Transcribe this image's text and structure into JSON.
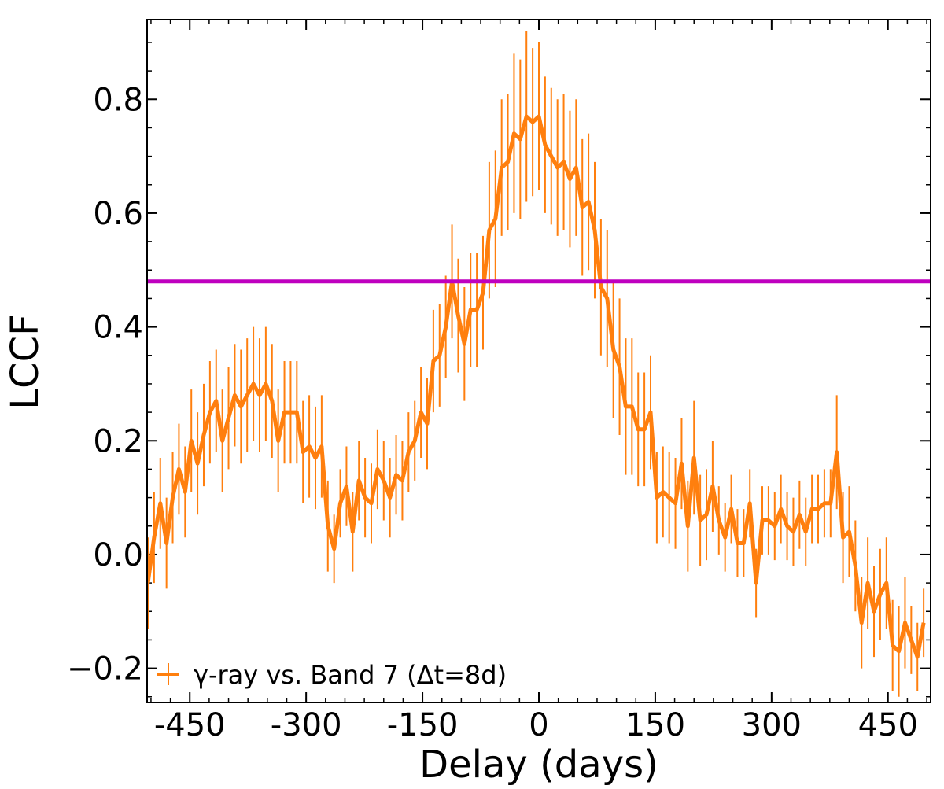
{
  "chart_data": {
    "type": "line",
    "xlabel": "Delay (days)",
    "ylabel": "LCCF",
    "xlim": [
      -505,
      505
    ],
    "ylim": [
      -0.26,
      0.94
    ],
    "x_ticks": [
      -450,
      -300,
      -150,
      0,
      150,
      300,
      450
    ],
    "x_tick_labels": [
      "-450",
      "-300",
      "-150",
      "0",
      "150",
      "300",
      "450"
    ],
    "y_ticks": [
      -0.2,
      0.0,
      0.2,
      0.4,
      0.6,
      0.8
    ],
    "y_tick_labels": [
      "−0.2",
      "0.0",
      "0.2",
      "0.4",
      "0.6",
      "0.8"
    ],
    "threshold": {
      "y": 0.48,
      "color": "#bf00bf"
    },
    "legend": {
      "label": "γ-ray vs. Band 7 (Δt=8d)",
      "location": "bottom-left"
    },
    "series": [
      {
        "name": "γ-ray vs. Band 7 (Δt=8d)",
        "color": "#ff7f0e",
        "step": 8,
        "x_start": -504,
        "values": [
          -0.05,
          0.03,
          0.09,
          0.02,
          0.1,
          0.15,
          0.11,
          0.2,
          0.16,
          0.21,
          0.25,
          0.27,
          0.2,
          0.24,
          0.28,
          0.26,
          0.28,
          0.3,
          0.28,
          0.3,
          0.27,
          0.2,
          0.25,
          0.25,
          0.25,
          0.18,
          0.19,
          0.17,
          0.19,
          0.05,
          0.01,
          0.09,
          0.12,
          0.04,
          0.13,
          0.1,
          0.09,
          0.15,
          0.13,
          0.1,
          0.14,
          0.13,
          0.18,
          0.2,
          0.25,
          0.23,
          0.34,
          0.35,
          0.4,
          0.48,
          0.42,
          0.37,
          0.43,
          0.43,
          0.46,
          0.57,
          0.59,
          0.68,
          0.69,
          0.74,
          0.73,
          0.77,
          0.76,
          0.77,
          0.72,
          0.7,
          0.68,
          0.69,
          0.66,
          0.68,
          0.61,
          0.62,
          0.57,
          0.47,
          0.45,
          0.36,
          0.33,
          0.26,
          0.26,
          0.22,
          0.22,
          0.25,
          0.1,
          0.11,
          0.1,
          0.09,
          0.16,
          0.05,
          0.17,
          0.06,
          0.07,
          0.12,
          0.06,
          0.03,
          0.08,
          0.02,
          0.02,
          0.09,
          -0.05,
          0.06,
          0.06,
          0.05,
          0.08,
          0.05,
          0.04,
          0.07,
          0.04,
          0.08,
          0.08,
          0.09,
          0.09,
          0.18,
          0.03,
          0.04,
          -0.02,
          -0.12,
          -0.05,
          -0.1,
          -0.07,
          -0.05,
          -0.16,
          -0.17,
          -0.12,
          -0.15,
          -0.18,
          -0.12
        ],
        "errors": [
          0.08,
          0.08,
          0.08,
          0.08,
          0.08,
          0.08,
          0.08,
          0.09,
          0.09,
          0.09,
          0.09,
          0.09,
          0.09,
          0.09,
          0.09,
          0.1,
          0.1,
          0.1,
          0.1,
          0.1,
          0.1,
          0.09,
          0.09,
          0.09,
          0.09,
          0.09,
          0.09,
          0.09,
          0.09,
          0.08,
          0.06,
          0.06,
          0.07,
          0.07,
          0.07,
          0.07,
          0.07,
          0.07,
          0.07,
          0.07,
          0.07,
          0.07,
          0.07,
          0.07,
          0.08,
          0.08,
          0.09,
          0.09,
          0.09,
          0.1,
          0.1,
          0.1,
          0.1,
          0.1,
          0.1,
          0.12,
          0.12,
          0.12,
          0.12,
          0.14,
          0.14,
          0.15,
          0.13,
          0.13,
          0.12,
          0.12,
          0.12,
          0.12,
          0.12,
          0.12,
          0.12,
          0.12,
          0.12,
          0.12,
          0.12,
          0.12,
          0.12,
          0.12,
          0.12,
          0.1,
          0.1,
          0.1,
          0.08,
          0.08,
          0.08,
          0.08,
          0.08,
          0.08,
          0.1,
          0.08,
          0.08,
          0.08,
          0.06,
          0.06,
          0.06,
          0.06,
          0.06,
          0.06,
          0.06,
          0.06,
          0.06,
          0.06,
          0.06,
          0.06,
          0.06,
          0.06,
          0.06,
          0.06,
          0.06,
          0.06,
          0.06,
          0.1,
          0.08,
          0.08,
          0.08,
          0.08,
          0.08,
          0.08,
          0.08,
          0.08,
          0.08,
          0.08,
          0.08,
          0.06,
          0.06,
          0.06
        ]
      }
    ]
  }
}
